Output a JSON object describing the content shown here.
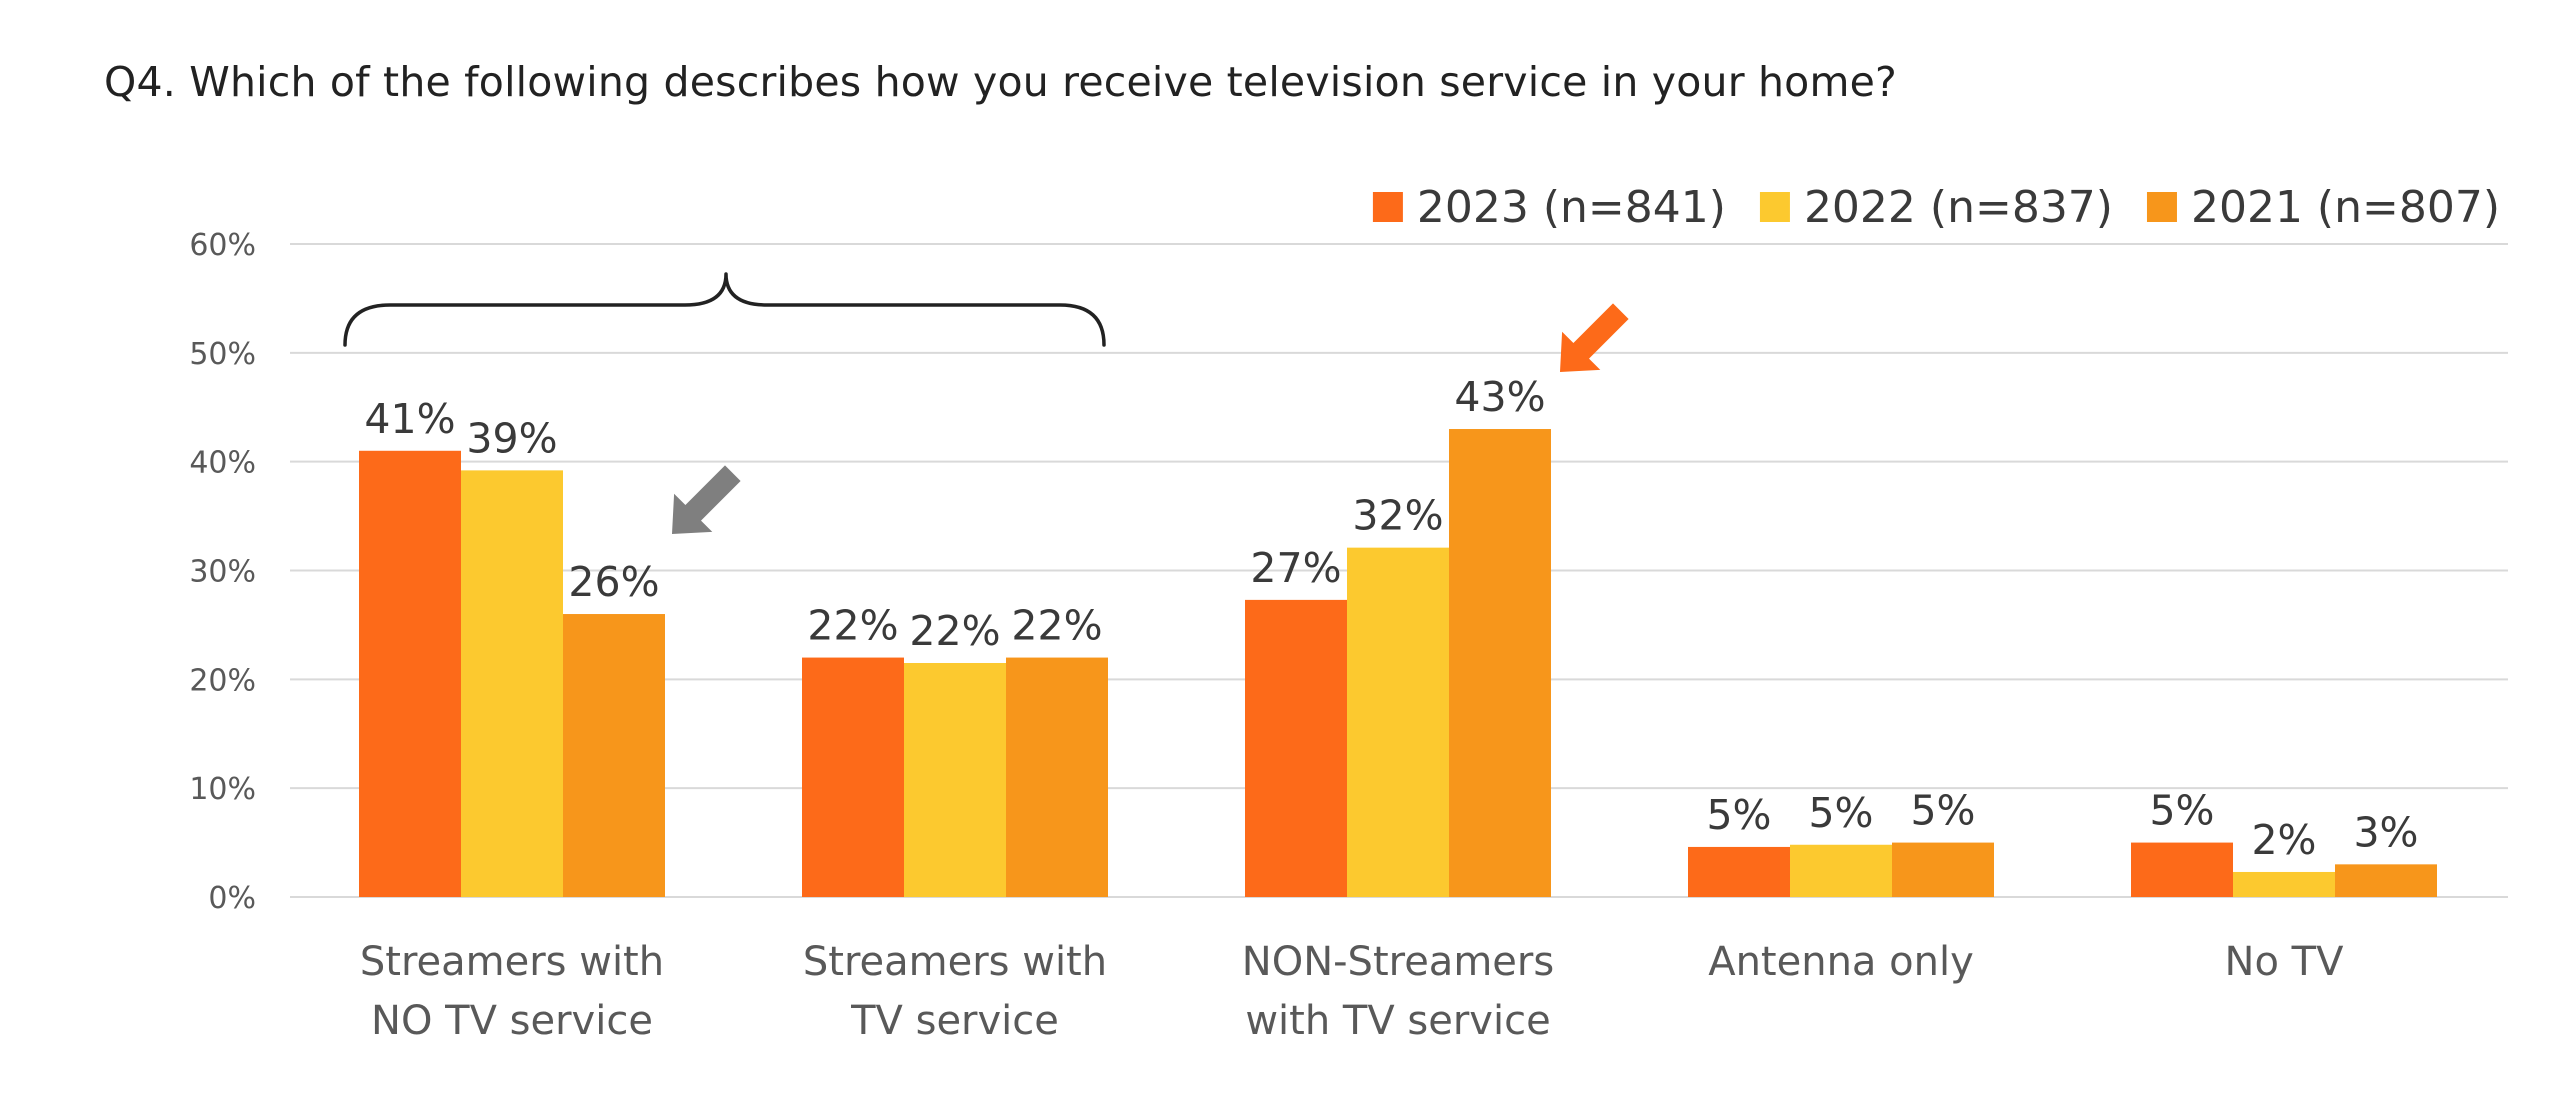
{
  "question": "Q4. Which of the following describes how you receive television service in your home?",
  "colors": {
    "s2023": "#fd6a19",
    "s2022": "#fcc92f",
    "s2021": "#f7961b",
    "grid": "#d9d9d9",
    "axis_text": "#595959",
    "arrow_grey": "#7f7f7f",
    "arrow_orange": "#fd6a19"
  },
  "chart_data": {
    "type": "bar",
    "title": "",
    "xlabel": "",
    "ylabel": "",
    "ylim": [
      0,
      60
    ],
    "yticks": [
      0,
      10,
      20,
      30,
      40,
      50,
      60
    ],
    "ytick_labels": [
      "0%",
      "10%",
      "20%",
      "30%",
      "40%",
      "50%",
      "60%"
    ],
    "grid": true,
    "legend_position": "top-right",
    "categories": [
      [
        "Streamers with",
        "NO TV service"
      ],
      [
        "Streamers with",
        "TV service"
      ],
      [
        "NON-Streamers",
        "with TV service"
      ],
      [
        "Antenna only"
      ],
      [
        "No TV"
      ]
    ],
    "series": [
      {
        "name": "2023 (n=841)",
        "color": "#fd6a19",
        "values": [
          41,
          22,
          27.3,
          4.6,
          5
        ],
        "labels": [
          "41%",
          "22%",
          "27%",
          "5%",
          "5%"
        ]
      },
      {
        "name": "2022 (n=837)",
        "color": "#fcc92f",
        "values": [
          39.2,
          21.5,
          32.1,
          4.8,
          2.3
        ],
        "labels": [
          "39%",
          "22%",
          "32%",
          "5%",
          "2%"
        ]
      },
      {
        "name": "2021 (n=807)",
        "color": "#f7961b",
        "values": [
          26,
          22,
          43,
          5,
          3
        ],
        "labels": [
          "26%",
          "22%",
          "43%",
          "5%",
          "3%"
        ]
      }
    ],
    "annotations": [
      {
        "type": "bracket",
        "spans_categories": [
          0,
          1
        ]
      },
      {
        "type": "arrow",
        "color": "grey",
        "points_to": "Streamers with NO TV service, 2021"
      },
      {
        "type": "arrow",
        "color": "orange",
        "points_to": "NON-Streamers with TV service, 2021"
      }
    ]
  }
}
